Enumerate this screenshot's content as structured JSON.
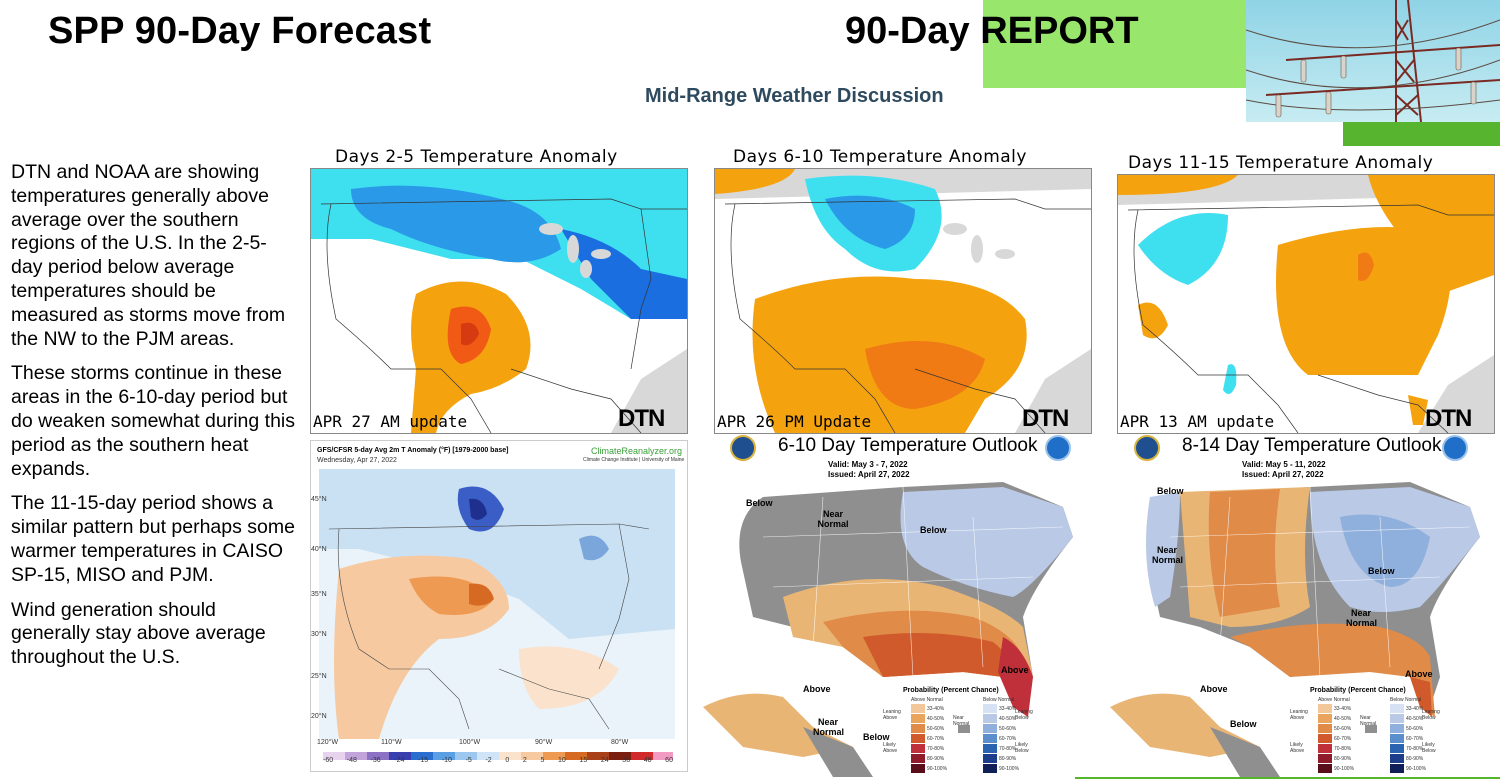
{
  "header": {
    "title": "SPP 90-Day Forecast",
    "report_title": "90-Day REPORT",
    "subtitle": "Mid-Range Weather Discussion"
  },
  "discussion": {
    "paragraphs": [
      "DTN and NOAA are showing temperatures generally above average over the southern regions of the U.S. In the 2-5-day period below average temperatures should be measured as storms move from the NW to the PJM areas.",
      "These storms continue in these areas in the 6-10-day period but do weaken somewhat during this period as the southern heat expands.",
      "The 11-15-day period shows a similar pattern but perhaps some warmer temperatures in CAISO SP-15, MISO and PJM.",
      "Wind generation should generally stay above average throughout the U.S."
    ]
  },
  "dtn_maps": [
    {
      "title": "Days 2-5 Temperature Anomaly",
      "update": "APR 27 AM update",
      "logo": "DTN"
    },
    {
      "title": "Days 6-10 Temperature Anomaly",
      "update": "APR 26 PM Update",
      "logo": "DTN"
    },
    {
      "title": "Days 11-15 Temperature Anomaly",
      "update": "APR 13 AM update",
      "logo": "DTN"
    }
  ],
  "gfs_map": {
    "title": "GFS/CFSR 5-day Avg 2m T Anomaly (°F) [1979-2000 base]",
    "date": "Wednesday, Apr 27, 2022",
    "brand": "ClimateReanalyzer.org",
    "brand_sub": "Climate Change Institute | University of Maine",
    "lat_labels": [
      "45°N",
      "40°N",
      "35°N",
      "30°N",
      "25°N",
      "20°N"
    ],
    "lon_labels": [
      "120°W",
      "110°W",
      "100°W",
      "90°W",
      "80°W"
    ],
    "scale_labels": [
      "-60",
      "-48",
      "-36",
      "-24",
      "-15",
      "-10",
      "-5",
      "-2",
      "0",
      "2",
      "5",
      "10",
      "15",
      "24",
      "36",
      "48",
      "60"
    ]
  },
  "outlooks": [
    {
      "title": "6-10 Day Temperature Outlook",
      "valid": "Valid:  May 3 - 7, 2022",
      "issued": "Issued:  April 27, 2022",
      "labels": [
        "Below",
        "Near Normal",
        "Below",
        "Above",
        "Above",
        "Near Normal",
        "Below"
      ]
    },
    {
      "title": "8-14 Day Temperature Outlook",
      "valid": "Valid:  May 5 - 11, 2022",
      "issued": "Issued:  April 27, 2022",
      "labels": [
        "Below",
        "Near Normal",
        "Below",
        "Near Normal",
        "Above",
        "Above",
        "Below"
      ]
    }
  ],
  "legend": {
    "title": "Probability (Percent Chance)",
    "above_normal": "Above Normal",
    "below_normal": "Below Normal",
    "near_normal": "Near Normal",
    "leaning_above": "Leaning Above",
    "leaning_below": "Leaning Below",
    "likely_above": "Likely Above",
    "likely_below": "Likely Below",
    "ranges": [
      "33-40%",
      "40-50%",
      "50-60%",
      "60-70%",
      "70-80%",
      "80-90%",
      "90-100%"
    ]
  },
  "colors": {
    "report_green": "#98e66c",
    "bar_green": "#56b42e",
    "subtitle_blue": "#2e4a5e",
    "warm_orange": "#f5a20f",
    "hot_orange": "#f05a14",
    "cool_cyan": "#3ee0f0",
    "cool_blue": "#2a9ae8"
  }
}
